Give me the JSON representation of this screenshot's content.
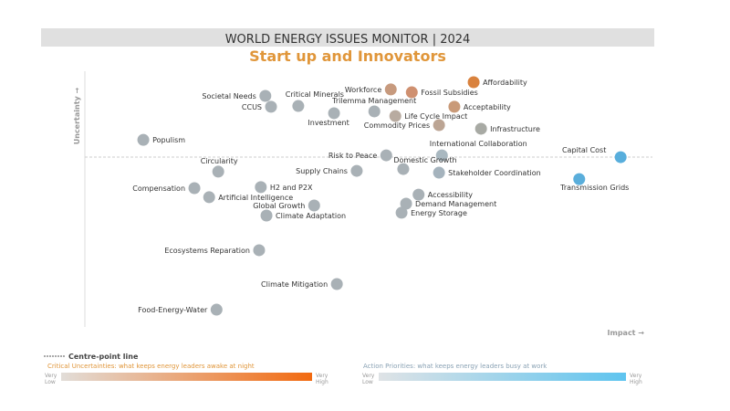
{
  "header": {
    "title": "WORLD ENERGY ISSUES MONITOR | 2024",
    "subtitle": "Start up and Innovators"
  },
  "chart_data": {
    "type": "scatter",
    "title": "Start up and Innovators",
    "xlabel": "Impact →",
    "ylabel": "Uncertainty →",
    "xlim": [
      0,
      100
    ],
    "ylim": [
      0,
      100
    ],
    "centre_line_uncertainty": 65.7,
    "grid": false,
    "points": [
      {
        "name": "Affordability",
        "impact": 68.5,
        "uncertainty": 94.7,
        "color": "#d9823e"
      },
      {
        "name": "Workforce",
        "impact": 53.9,
        "uncertainty": 91.9,
        "color": "#c79a7e"
      },
      {
        "name": "Fossil Subsidies",
        "impact": 57.6,
        "uncertainty": 90.8,
        "color": "#cf9070"
      },
      {
        "name": "Societal Needs",
        "impact": 31.8,
        "uncertainty": 89.4,
        "color": "#a9b1b6"
      },
      {
        "name": "Critical Minerals",
        "impact": 37.6,
        "uncertainty": 85.5,
        "color": "#a9b1b6"
      },
      {
        "name": "CCUS",
        "impact": 32.8,
        "uncertainty": 85.2,
        "color": "#a9b1b6"
      },
      {
        "name": "Trilemma Management",
        "impact": 51.0,
        "uncertainty": 83.4,
        "color": "#a9b1b6"
      },
      {
        "name": "Investment",
        "impact": 43.9,
        "uncertainty": 82.7,
        "color": "#a9b1b6"
      },
      {
        "name": "Acceptability",
        "impact": 65.1,
        "uncertainty": 85.2,
        "color": "#c99a78"
      },
      {
        "name": "Life Cycle Impact",
        "impact": 54.7,
        "uncertainty": 81.6,
        "color": "#b8aba0"
      },
      {
        "name": "Commodity Prices",
        "impact": 62.4,
        "uncertainty": 78.1,
        "color": "#bca594"
      },
      {
        "name": "Infrastructure",
        "impact": 69.8,
        "uncertainty": 76.7,
        "color": "#a8aaa4"
      },
      {
        "name": "Populism",
        "impact": 10.3,
        "uncertainty": 72.4,
        "color": "#a9b1b6"
      },
      {
        "name": "International Collaboration",
        "impact": 62.9,
        "uncertainty": 66.4,
        "color": "#a9b8c0"
      },
      {
        "name": "Risk to Peace",
        "impact": 53.1,
        "uncertainty": 66.4,
        "color": "#a9b1b6"
      },
      {
        "name": "Capital Cost",
        "impact": 94.4,
        "uncertainty": 65.7,
        "color": "#58aedc"
      },
      {
        "name": "Domestic Growth",
        "impact": 56.1,
        "uncertainty": 61.1,
        "color": "#a9b1b6"
      },
      {
        "name": "Circularity",
        "impact": 23.5,
        "uncertainty": 60.1,
        "color": "#a9b1b6"
      },
      {
        "name": "Supply Chains",
        "impact": 47.9,
        "uncertainty": 60.4,
        "color": "#a9b1b6"
      },
      {
        "name": "Stakeholder Coordination",
        "impact": 62.4,
        "uncertainty": 59.7,
        "color": "#a5b3bd"
      },
      {
        "name": "Transmission Grids",
        "impact": 87.1,
        "uncertainty": 57.2,
        "color": "#5aaedb"
      },
      {
        "name": "Compensation",
        "impact": 19.3,
        "uncertainty": 53.7,
        "color": "#a9b1b6"
      },
      {
        "name": "H2 and P2X",
        "impact": 31.0,
        "uncertainty": 54.1,
        "color": "#a9b1b6"
      },
      {
        "name": "Accessibility",
        "impact": 58.8,
        "uncertainty": 51.2,
        "color": "#a9b1b6"
      },
      {
        "name": "Artificial Intelligence",
        "impact": 21.9,
        "uncertainty": 50.2,
        "color": "#a9b1b6"
      },
      {
        "name": "Global Growth",
        "impact": 40.4,
        "uncertainty": 47.0,
        "color": "#a9b1b6"
      },
      {
        "name": "Demand Management",
        "impact": 56.6,
        "uncertainty": 47.7,
        "color": "#a9b1b6"
      },
      {
        "name": "Energy Storage",
        "impact": 55.8,
        "uncertainty": 44.2,
        "color": "#a9b1b6"
      },
      {
        "name": "Climate Adaptation",
        "impact": 32.0,
        "uncertainty": 43.1,
        "color": "#a9b1b6"
      },
      {
        "name": "Ecosystems Reparation",
        "impact": 30.7,
        "uncertainty": 29.7,
        "color": "#a9b1b6"
      },
      {
        "name": "Climate Mitigation",
        "impact": 44.4,
        "uncertainty": 16.6,
        "color": "#a9b1b6"
      },
      {
        "name": "Food-Energy-Water",
        "impact": 23.2,
        "uncertainty": 6.7,
        "color": "#a9b1b6"
      }
    ]
  },
  "legend": {
    "centre_line": "Centre-point line",
    "critical": {
      "label": "Critical Uncertainties: what keeps energy leaders awake at night",
      "low": "Very Low",
      "high": "Very High",
      "from": "#e2ddd8",
      "to": "#f26a10"
    },
    "action": {
      "label": "Action Priorities: what keeps energy leaders busy at work",
      "low": "Very Low",
      "high": "Very High",
      "from": "#dfe3e6",
      "to": "#5ec4ef"
    }
  }
}
